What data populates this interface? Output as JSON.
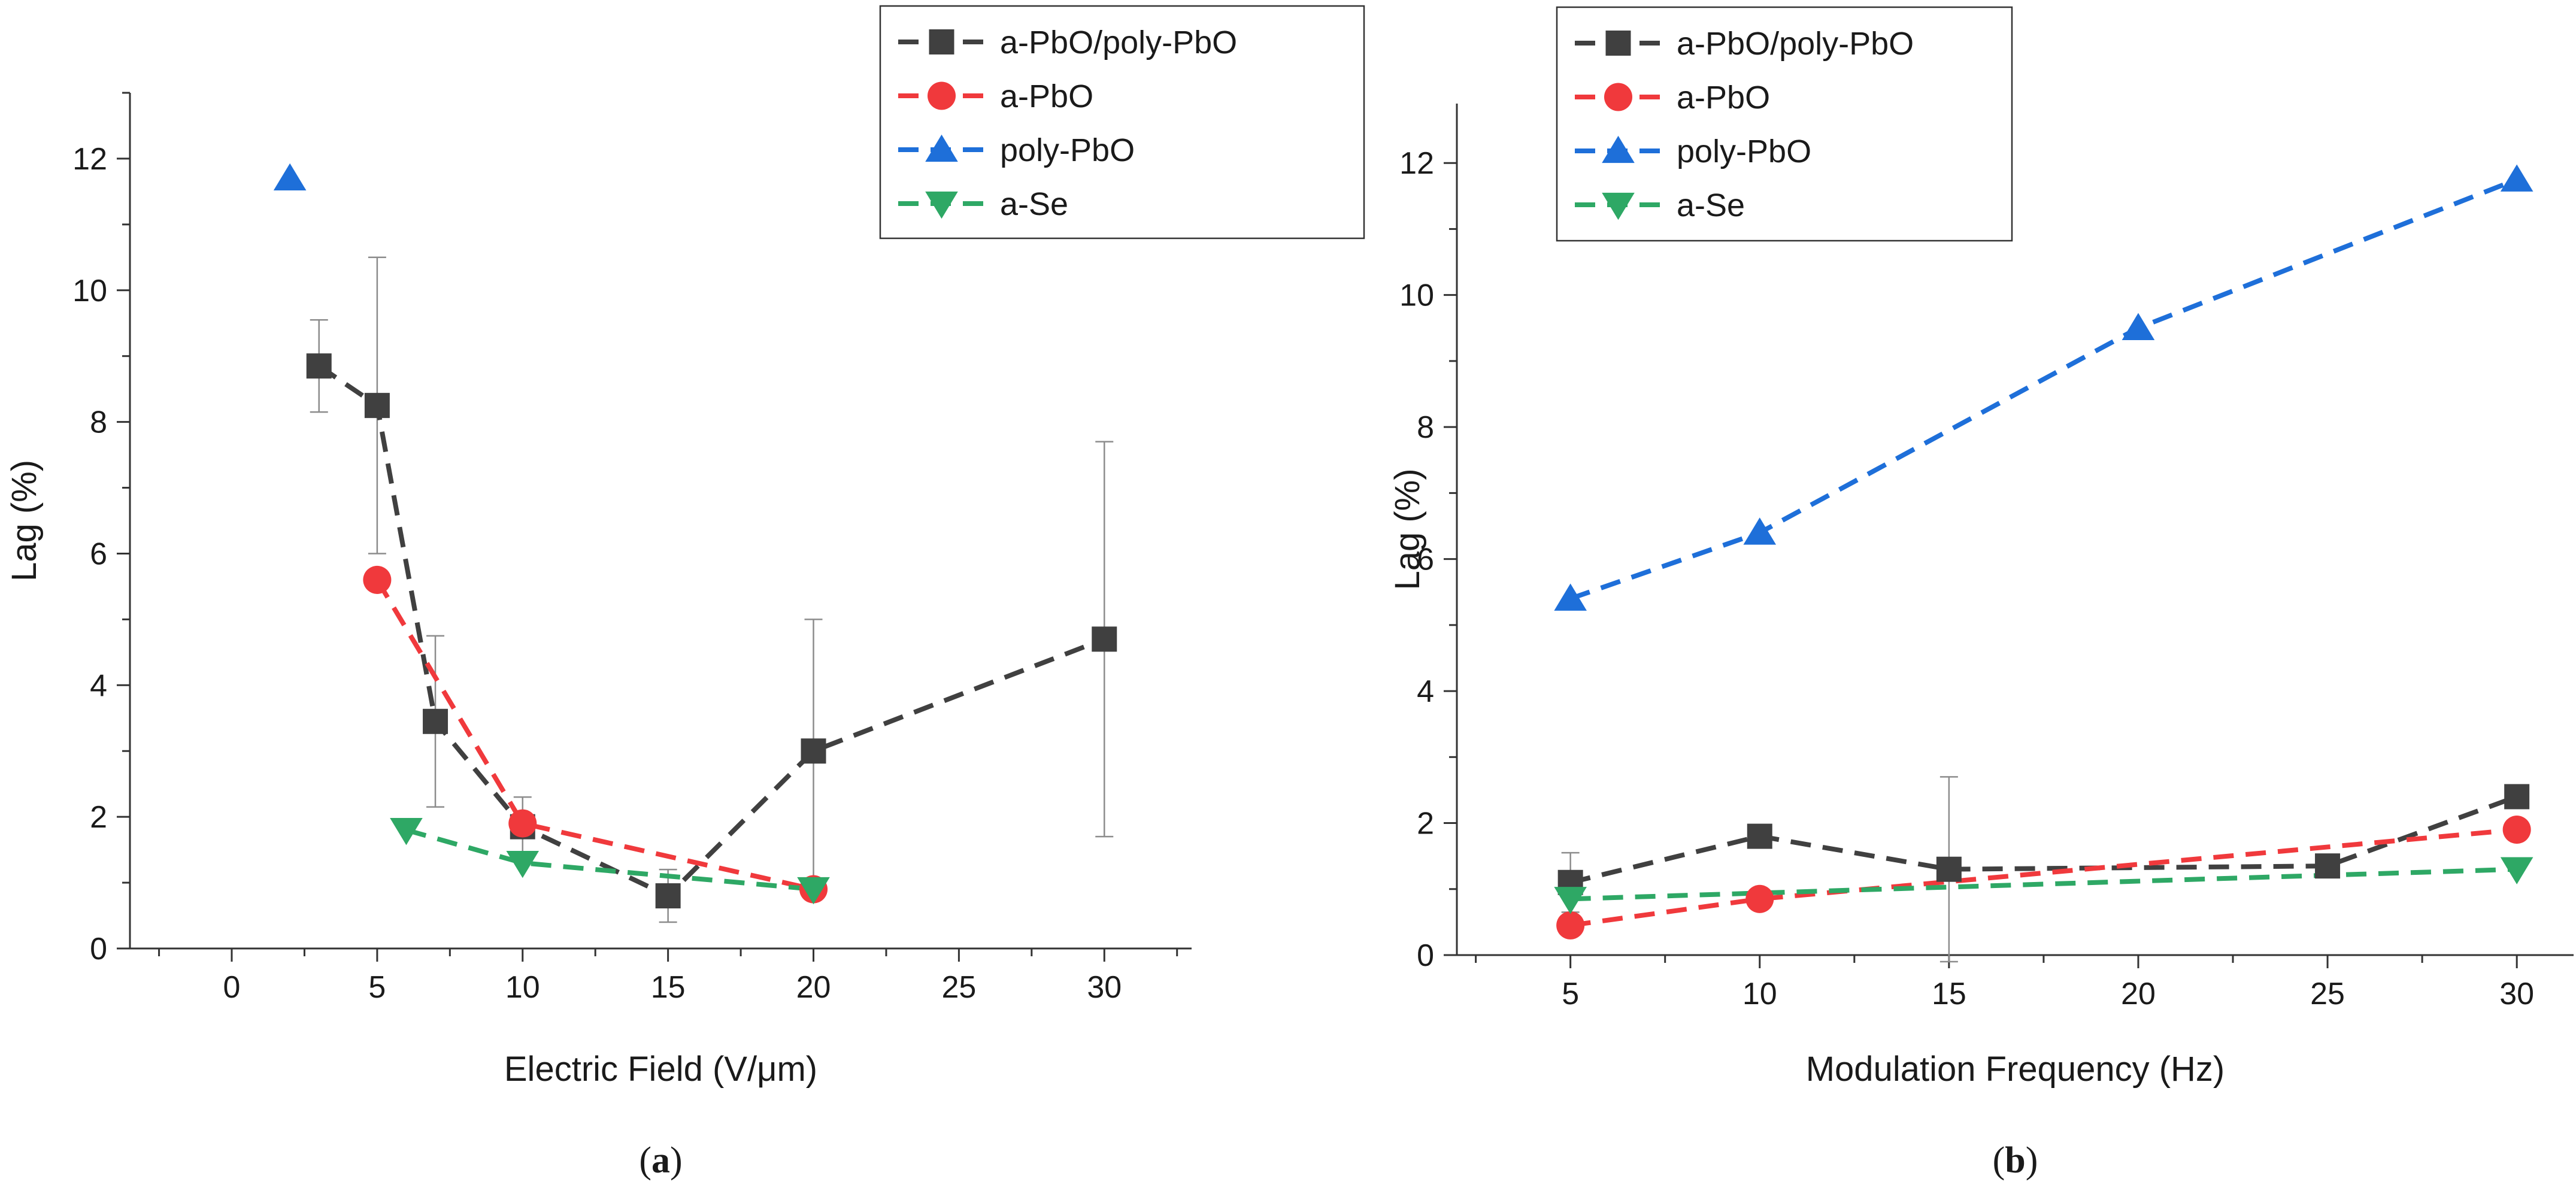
{
  "chart_data": [
    {
      "type": "line",
      "panel_label": "(a)",
      "xlabel": "Electric Field (V/μm)",
      "ylabel": "Lag (%)",
      "xlim": [
        -3.5,
        33
      ],
      "ylim": [
        0,
        13
      ],
      "xticks": [
        0,
        5,
        10,
        15,
        20,
        25,
        30
      ],
      "yticks": [
        0,
        2,
        4,
        6,
        8,
        10,
        12
      ],
      "grid": false,
      "legend_position": "top-right",
      "series": [
        {
          "name": "a-PbO/poly-PbO",
          "color": "#404040",
          "marker": "square",
          "x": [
            3,
            5,
            7,
            10,
            15,
            20,
            30
          ],
          "y": [
            8.85,
            8.25,
            3.45,
            1.85,
            0.8,
            3.0,
            4.7
          ],
          "err": [
            0.7,
            2.25,
            1.3,
            0.45,
            0.4,
            2.0,
            3.0
          ]
        },
        {
          "name": "a-PbO",
          "color": "#f0393c",
          "marker": "circle",
          "x": [
            5,
            10,
            20
          ],
          "y": [
            5.6,
            1.9,
            0.9
          ]
        },
        {
          "name": "poly-PbO",
          "color": "#1e6fd9",
          "marker": "triangle-up",
          "x": [
            2
          ],
          "y": [
            11.7
          ]
        },
        {
          "name": "a-Se",
          "color": "#2ea865",
          "marker": "triangle-down",
          "x": [
            6,
            10,
            20
          ],
          "y": [
            1.8,
            1.3,
            0.9
          ]
        }
      ]
    },
    {
      "type": "line",
      "panel_label": "(b)",
      "xlabel": "Modulation Frequency (Hz)",
      "ylabel": "Lag (%)",
      "xlim": [
        2,
        31.5
      ],
      "ylim": [
        0,
        12.9
      ],
      "xticks": [
        5,
        10,
        15,
        20,
        25,
        30
      ],
      "yticks": [
        0,
        2,
        4,
        6,
        8,
        10,
        12
      ],
      "grid": false,
      "legend_position": "top-left",
      "series": [
        {
          "name": "a-PbO/poly-PbO",
          "color": "#404040",
          "marker": "square",
          "x": [
            5,
            10,
            15,
            25,
            30
          ],
          "y": [
            1.1,
            1.8,
            1.3,
            1.35,
            2.4
          ],
          "err": [
            0.45,
            0,
            1.4,
            0,
            0
          ]
        },
        {
          "name": "a-PbO",
          "color": "#f0393c",
          "marker": "circle",
          "x": [
            5,
            10,
            30
          ],
          "y": [
            0.45,
            0.85,
            1.9
          ]
        },
        {
          "name": "poly-PbO",
          "color": "#1e6fd9",
          "marker": "triangle-up",
          "x": [
            5,
            10,
            20,
            30
          ],
          "y": [
            5.4,
            6.4,
            9.5,
            11.75
          ]
        },
        {
          "name": "a-Se",
          "color": "#2ea865",
          "marker": "triangle-down",
          "x": [
            5,
            30
          ],
          "y": [
            0.85,
            1.3
          ]
        }
      ]
    }
  ]
}
